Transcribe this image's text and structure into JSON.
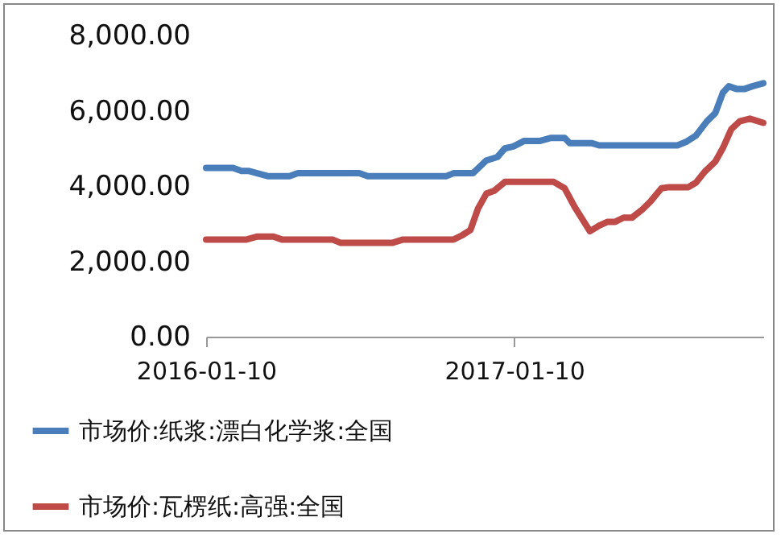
{
  "chart_data": {
    "type": "line",
    "xlim": [
      "2016-01-10",
      "2017-11-02"
    ],
    "xticks": [
      "2016-01-10",
      "2017-01-10"
    ],
    "ylim": [
      0,
      8000
    ],
    "yticks": [
      {
        "value": 0,
        "label": "0.00"
      },
      {
        "value": 2000,
        "label": "2,000.00"
      },
      {
        "value": 4000,
        "label": "4,000.00"
      },
      {
        "value": 6000,
        "label": "6,000.00"
      },
      {
        "value": 8000,
        "label": "8,000.00"
      }
    ],
    "grid": false,
    "legend": "bottom",
    "line_style": "solid",
    "marker": "none",
    "series": [
      {
        "name": "市场价:纸浆:漂白化学浆:全国",
        "color": "#4a7ebb",
        "x": [
          "2016-01-10",
          "2016-02-11",
          "2016-02-21",
          "2016-03-01",
          "2016-03-24",
          "2016-04-18",
          "2016-04-28",
          "2016-07-10",
          "2016-07-20",
          "2016-10-21",
          "2016-10-30",
          "2016-11-22",
          "2016-12-08",
          "2016-12-21",
          "2016-12-30",
          "2017-01-09",
          "2017-01-22",
          "2017-02-10",
          "2017-02-23",
          "2017-03-11",
          "2017-03-17",
          "2017-04-12",
          "2017-04-21",
          "2017-07-23",
          "2017-08-02",
          "2017-08-14",
          "2017-08-27",
          "2017-09-06",
          "2017-09-15",
          "2017-09-22",
          "2017-10-01",
          "2017-10-11",
          "2017-10-20",
          "2017-11-02"
        ],
        "values": [
          4480,
          4480,
          4400,
          4400,
          4260,
          4260,
          4340,
          4340,
          4260,
          4260,
          4340,
          4340,
          4680,
          4770,
          5000,
          5050,
          5200,
          5200,
          5280,
          5280,
          5140,
          5140,
          5080,
          5080,
          5170,
          5340,
          5720,
          5940,
          6480,
          6650,
          6580,
          6580,
          6650,
          6730
        ]
      },
      {
        "name": "市场价:瓦楞纸:高强:全国",
        "color": "#be4b48",
        "x": [
          "2016-01-10",
          "2016-02-27",
          "2016-03-11",
          "2016-03-30",
          "2016-04-09",
          "2016-06-08",
          "2016-06-18",
          "2016-08-18",
          "2016-08-31",
          "2016-10-30",
          "2016-11-09",
          "2016-11-19",
          "2016-11-28",
          "2016-12-08",
          "2016-12-17",
          "2016-12-30",
          "2017-02-26",
          "2017-03-11",
          "2017-03-23",
          "2017-04-10",
          "2017-04-21",
          "2017-05-01",
          "2017-05-10",
          "2017-05-20",
          "2017-05-30",
          "2017-06-11",
          "2017-06-21",
          "2017-07-04",
          "2017-07-13",
          "2017-08-05",
          "2017-08-14",
          "2017-08-24",
          "2017-09-06",
          "2017-09-15",
          "2017-09-25",
          "2017-10-05",
          "2017-10-17",
          "2017-11-02"
        ],
        "values": [
          2580,
          2580,
          2660,
          2660,
          2580,
          2580,
          2490,
          2490,
          2580,
          2580,
          2690,
          2830,
          3400,
          3800,
          3870,
          4110,
          4110,
          3940,
          3440,
          2800,
          2950,
          3050,
          3050,
          3160,
          3160,
          3370,
          3590,
          3940,
          3970,
          3970,
          4090,
          4370,
          4650,
          5010,
          5510,
          5720,
          5790,
          5680
        ]
      }
    ]
  }
}
